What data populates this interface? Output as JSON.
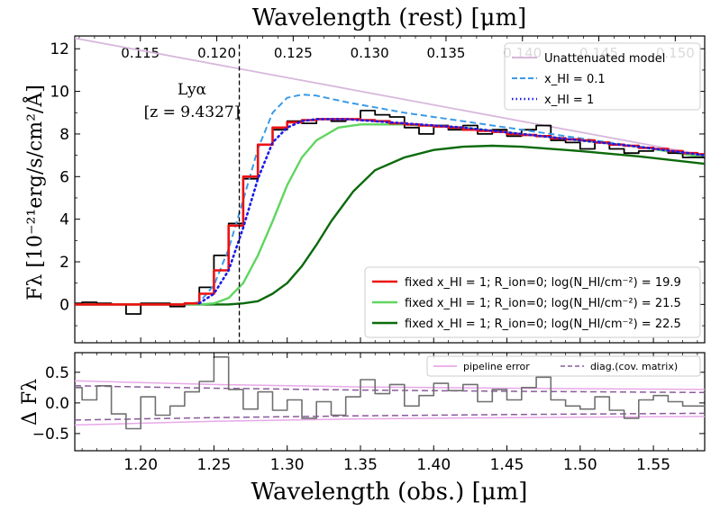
{
  "chart_data": [
    {
      "type": "line",
      "title_top": "Wavelength (rest) [μm]",
      "ylabel": "Fλ [10⁻²¹erg/s/cm²/Å]",
      "xlim": [
        1.155,
        1.585
      ],
      "ylim": [
        -1.8,
        12.6
      ],
      "grid": false,
      "top_ticks": [
        "0.115",
        "0.120",
        "0.125",
        "0.130",
        "0.135",
        "0.140",
        "0.145",
        "0.150"
      ],
      "top_tick_values": [
        0.115,
        0.12,
        0.125,
        0.13,
        0.135,
        0.14,
        0.145,
        0.15
      ],
      "y_ticks": [
        "0",
        "2",
        "4",
        "6",
        "8",
        "10",
        "12"
      ],
      "y_tick_values": [
        0,
        2,
        4,
        6,
        8,
        10,
        12
      ],
      "annotation": {
        "line1": "Lyα",
        "line2": "[z = 9.4327]",
        "x": 1.2673
      },
      "legend_top": [
        "Unattenuated model",
        "x_HI = 0.1",
        "x_HI = 1"
      ],
      "legend_bottom": [
        "fixed x_HI = 1; R_ion=0; log(N_HI/cm⁻²) = 19.9",
        "fixed x_HI = 1; R_ion=0; log(N_HI/cm⁻²) = 21.5",
        "fixed x_HI = 1; R_ion=0; log(N_HI/cm⁻²) = 22.5"
      ],
      "series": [
        {
          "name": "data",
          "color": "#000000",
          "style": "steps",
          "x": [
            1.155,
            1.165,
            1.175,
            1.185,
            1.195,
            1.205,
            1.215,
            1.225,
            1.235,
            1.245,
            1.255,
            1.265,
            1.275,
            1.285,
            1.295,
            1.305,
            1.315,
            1.325,
            1.335,
            1.345,
            1.355,
            1.365,
            1.375,
            1.385,
            1.395,
            1.405,
            1.415,
            1.425,
            1.435,
            1.445,
            1.455,
            1.465,
            1.475,
            1.485,
            1.495,
            1.505,
            1.515,
            1.525,
            1.535,
            1.545,
            1.555,
            1.565,
            1.575,
            1.585
          ],
          "y": [
            0.05,
            0.1,
            0.05,
            0.0,
            -0.45,
            0.05,
            0.05,
            -0.1,
            0.05,
            0.8,
            2.3,
            3.8,
            5.9,
            7.5,
            8.2,
            8.6,
            8.5,
            8.7,
            8.6,
            8.7,
            9.1,
            8.9,
            8.8,
            8.3,
            8.0,
            8.4,
            8.2,
            8.4,
            8.0,
            8.2,
            7.9,
            8.2,
            8.4,
            7.7,
            7.6,
            7.3,
            7.6,
            7.3,
            7.1,
            7.2,
            7.3,
            7.1,
            6.9,
            6.9
          ]
        },
        {
          "name": "fixed x_HI = 1; log(N_HI) = 19.9",
          "color": "#ee1111",
          "style": "steps",
          "x": [
            1.155,
            1.165,
            1.175,
            1.185,
            1.195,
            1.205,
            1.215,
            1.225,
            1.235,
            1.245,
            1.255,
            1.265,
            1.275,
            1.285,
            1.295,
            1.305,
            1.315,
            1.325,
            1.335,
            1.345,
            1.355,
            1.365,
            1.375,
            1.385,
            1.395,
            1.405,
            1.415,
            1.425,
            1.435,
            1.445,
            1.455,
            1.465,
            1.475,
            1.485,
            1.495,
            1.505,
            1.515,
            1.525,
            1.535,
            1.545,
            1.555,
            1.565,
            1.575,
            1.585
          ],
          "y": [
            0,
            0,
            0,
            0,
            0,
            0,
            0,
            0,
            0.05,
            0.5,
            1.6,
            3.7,
            6.0,
            7.5,
            8.3,
            8.55,
            8.65,
            8.7,
            8.7,
            8.7,
            8.65,
            8.6,
            8.5,
            8.45,
            8.4,
            8.35,
            8.3,
            8.2,
            8.15,
            8.1,
            8.0,
            7.95,
            7.9,
            7.8,
            7.75,
            7.7,
            7.6,
            7.5,
            7.45,
            7.35,
            7.3,
            7.2,
            7.1,
            7.05
          ]
        },
        {
          "name": "Unattenuated model",
          "color": "#d8b8dc",
          "style": "line",
          "x": [
            1.155,
            1.585
          ],
          "y": [
            12.5,
            7.0
          ]
        },
        {
          "name": "x_HI = 0.1",
          "color": "#3a9ae8",
          "style": "dashed",
          "x": [
            1.23,
            1.24,
            1.25,
            1.26,
            1.27,
            1.28,
            1.29,
            1.3,
            1.31,
            1.32,
            1.34,
            1.38,
            1.42,
            1.46,
            1.5,
            1.54,
            1.585
          ],
          "y": [
            0,
            0.1,
            0.9,
            2.6,
            4.9,
            7.3,
            9.0,
            9.7,
            9.85,
            9.8,
            9.5,
            9.0,
            8.6,
            8.2,
            7.8,
            7.4,
            7.0
          ]
        },
        {
          "name": "x_HI = 1",
          "color": "#1a1aee",
          "style": "dotted",
          "x": [
            1.24,
            1.25,
            1.26,
            1.27,
            1.28,
            1.29,
            1.3,
            1.31,
            1.32,
            1.34,
            1.38,
            1.42,
            1.46,
            1.5,
            1.54,
            1.585
          ],
          "y": [
            0.05,
            0.5,
            1.6,
            3.6,
            5.9,
            7.6,
            8.3,
            8.6,
            8.7,
            8.7,
            8.5,
            8.3,
            8.0,
            7.7,
            7.4,
            7.0
          ]
        },
        {
          "name": "fixed x_HI = 1; log(N_HI) = 21.5",
          "color": "#5fd65f",
          "style": "line",
          "x": [
            1.155,
            1.24,
            1.25,
            1.26,
            1.27,
            1.28,
            1.29,
            1.3,
            1.31,
            1.32,
            1.335,
            1.35,
            1.38,
            1.42,
            1.46,
            1.5,
            1.54,
            1.585
          ],
          "y": [
            0,
            0,
            0.05,
            0.3,
            1.0,
            2.3,
            3.9,
            5.6,
            6.9,
            7.7,
            8.3,
            8.45,
            8.45,
            8.3,
            8.0,
            7.7,
            7.4,
            6.9
          ]
        },
        {
          "name": "fixed x_HI = 1; log(N_HI) = 22.5",
          "color": "#0a6a0a",
          "style": "line",
          "x": [
            1.155,
            1.26,
            1.27,
            1.28,
            1.29,
            1.3,
            1.31,
            1.32,
            1.33,
            1.345,
            1.36,
            1.38,
            1.4,
            1.42,
            1.44,
            1.46,
            1.5,
            1.54,
            1.585
          ],
          "y": [
            0,
            0,
            0.05,
            0.15,
            0.5,
            1.0,
            1.8,
            2.8,
            3.9,
            5.3,
            6.3,
            6.9,
            7.25,
            7.4,
            7.45,
            7.4,
            7.2,
            6.95,
            6.6
          ]
        }
      ]
    },
    {
      "type": "line",
      "xlabel": "Wavelength (obs.) [μm]",
      "ylabel": "Δ Fλ",
      "xlim": [
        1.155,
        1.585
      ],
      "ylim": [
        -0.78,
        0.82
      ],
      "x_ticks": [
        "1.20",
        "1.25",
        "1.30",
        "1.35",
        "1.40",
        "1.45",
        "1.50",
        "1.55"
      ],
      "x_tick_values": [
        1.2,
        1.25,
        1.3,
        1.35,
        1.4,
        1.45,
        1.5,
        1.55
      ],
      "y_ticks": [
        "0.5",
        "0.0",
        "−0.5"
      ],
      "y_tick_values": [
        0.5,
        0.0,
        -0.5
      ],
      "legend": [
        "pipeline error",
        "diag.(cov. matrix)"
      ],
      "series": [
        {
          "name": "pipeline error upper",
          "color": "#e8a8e8",
          "style": "line",
          "x": [
            1.155,
            1.25,
            1.35,
            1.45,
            1.585
          ],
          "y": [
            0.36,
            0.3,
            0.26,
            0.24,
            0.22
          ]
        },
        {
          "name": "pipeline error lower",
          "color": "#e8a8e8",
          "style": "line",
          "x": [
            1.155,
            1.25,
            1.35,
            1.45,
            1.585
          ],
          "y": [
            -0.36,
            -0.3,
            -0.26,
            -0.24,
            -0.22
          ]
        },
        {
          "name": "diag upper",
          "color": "#8a5a9a",
          "style": "dashed",
          "x": [
            1.155,
            1.25,
            1.35,
            1.45,
            1.585
          ],
          "y": [
            0.28,
            0.24,
            0.21,
            0.19,
            0.17
          ]
        },
        {
          "name": "diag lower",
          "color": "#8a5a9a",
          "style": "dashed",
          "x": [
            1.155,
            1.25,
            1.35,
            1.45,
            1.585
          ],
          "y": [
            -0.28,
            -0.24,
            -0.21,
            -0.19,
            -0.17
          ]
        },
        {
          "name": "residual",
          "color": "#707070",
          "style": "steps",
          "x": [
            1.155,
            1.165,
            1.175,
            1.185,
            1.195,
            1.205,
            1.215,
            1.225,
            1.235,
            1.245,
            1.255,
            1.265,
            1.275,
            1.285,
            1.295,
            1.305,
            1.315,
            1.325,
            1.335,
            1.345,
            1.355,
            1.365,
            1.375,
            1.385,
            1.395,
            1.405,
            1.415,
            1.425,
            1.435,
            1.445,
            1.455,
            1.465,
            1.475,
            1.485,
            1.495,
            1.505,
            1.515,
            1.525,
            1.535,
            1.545,
            1.555,
            1.565,
            1.575,
            1.585
          ],
          "y": [
            0.25,
            0.05,
            0.28,
            -0.18,
            -0.42,
            0.1,
            -0.2,
            -0.05,
            0.18,
            0.35,
            0.75,
            0.22,
            -0.1,
            0.18,
            -0.12,
            0.05,
            -0.25,
            0.02,
            -0.2,
            0.1,
            0.38,
            0.15,
            0.3,
            -0.05,
            0.12,
            0.32,
            0.2,
            0.3,
            0.02,
            0.22,
            0.05,
            0.25,
            0.42,
            0.05,
            -0.05,
            -0.1,
            0.1,
            -0.12,
            -0.25,
            0.05,
            0.12,
            0.02,
            -0.05,
            -0.05
          ]
        }
      ]
    }
  ]
}
